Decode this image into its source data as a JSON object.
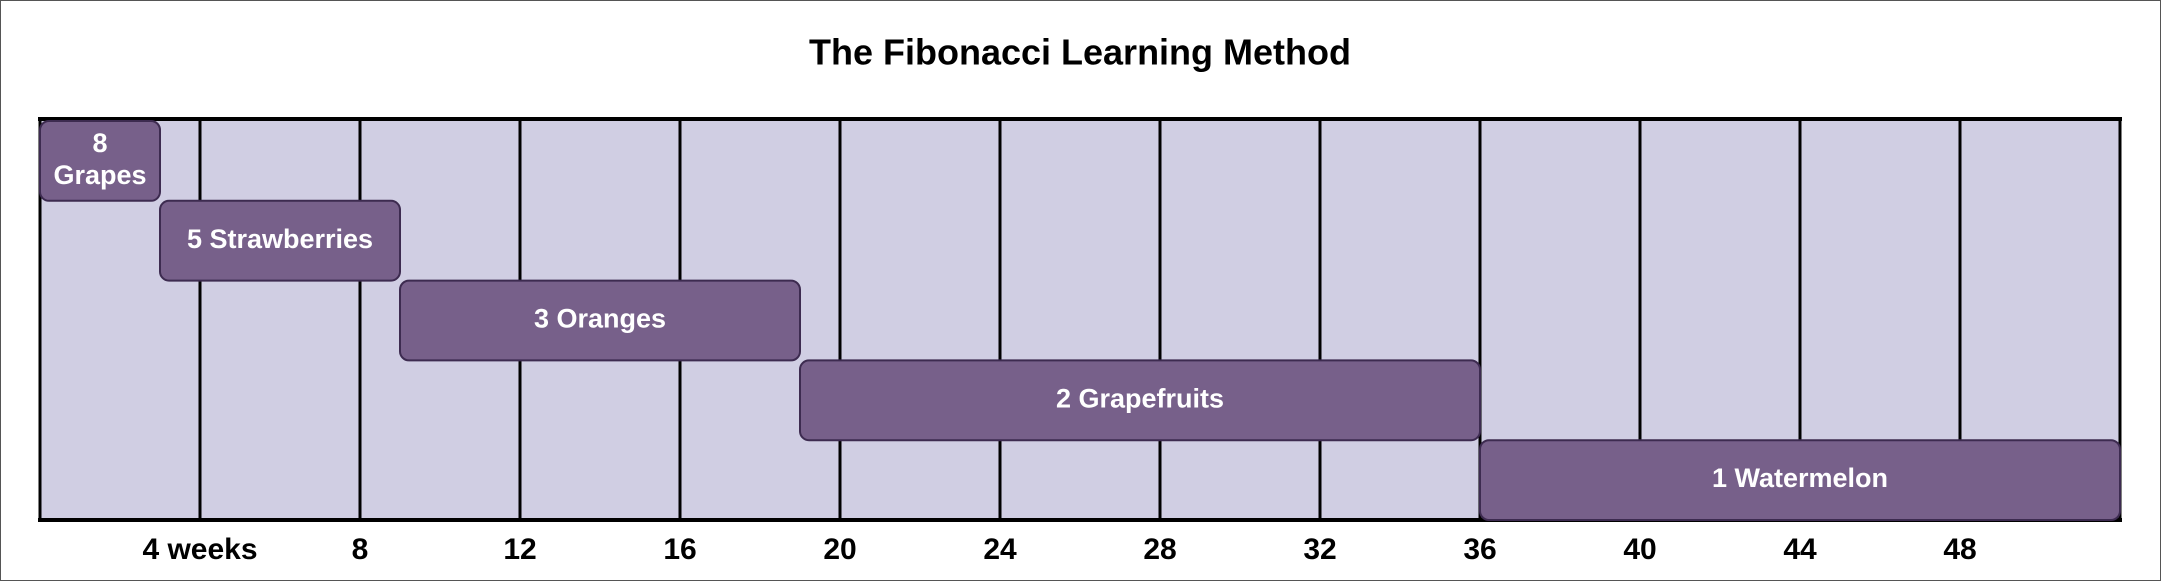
{
  "chart_data": {
    "type": "gantt",
    "title": "The Fibonacci Learning Method",
    "tasks": [
      {
        "label": "8 Grapes",
        "start": 0,
        "end": 3
      },
      {
        "label": "5 Strawberries",
        "start": 3,
        "end": 9
      },
      {
        "label": "3 Oranges",
        "start": 9,
        "end": 19
      },
      {
        "label": "2 Grapefruits",
        "start": 19,
        "end": 36
      },
      {
        "label": "1 Watermelon",
        "start": 36,
        "end": 52
      }
    ],
    "color": "#77608a",
    "background_color": "#d0cee3",
    "xlim": [
      0,
      52
    ],
    "xticks": [
      {
        "value": 4,
        "label": "4 weeks"
      },
      8,
      12,
      16,
      20,
      24,
      28,
      32,
      36,
      40,
      44,
      48
    ],
    "grid": true
  }
}
